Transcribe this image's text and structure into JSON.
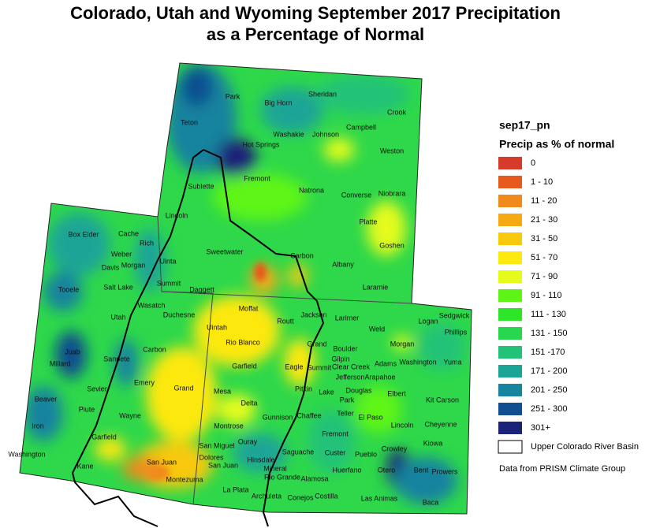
{
  "title": [
    "Colorado, Utah and Wyoming September 2017 Precipitation",
    "as a Percentage of Normal"
  ],
  "legend": {
    "name": "sep17_pn",
    "subtitle": "Precip as % of normal",
    "items": [
      {
        "label": "0",
        "color": "#d63a2a"
      },
      {
        "label": "1 - 10",
        "color": "#e65a1e"
      },
      {
        "label": "11 - 20",
        "color": "#f08a1a"
      },
      {
        "label": "21 - 30",
        "color": "#f5aa14"
      },
      {
        "label": "31 - 50",
        "color": "#f8c90c"
      },
      {
        "label": "51 - 70",
        "color": "#fde810"
      },
      {
        "label": "71 - 90",
        "color": "#e4fb1c"
      },
      {
        "label": "91 - 110",
        "color": "#5ef516"
      },
      {
        "label": "111 - 130",
        "color": "#2ee529"
      },
      {
        "label": "131 - 150",
        "color": "#28d650"
      },
      {
        "label": "151 -170",
        "color": "#22c278"
      },
      {
        "label": "171 - 200",
        "color": "#1aa596"
      },
      {
        "label": "201 - 250",
        "color": "#16839f"
      },
      {
        "label": "251 - 300",
        "color": "#104e8f"
      },
      {
        "label": "301+",
        "color": "#1b2378"
      }
    ],
    "basin_label": "Upper Colorado River Basin"
  },
  "source": "Data from PRISM Climate Group",
  "counties": [
    "Park",
    "Big Horn",
    "Sheridan",
    "Crook",
    "Teton",
    "Campbell",
    "Washakie",
    "Johnson",
    "Hot Springs",
    "Weston",
    "Fremont",
    "Sublette",
    "Natrona",
    "Converse",
    "Niobrara",
    "Lincoln",
    "Platte",
    "Goshen",
    "Carbon",
    "Sweetwater",
    "Albany",
    "Laramie",
    "Uinta",
    "Box Elder",
    "Cache",
    "Rich",
    "Weber",
    "Davis",
    "Morgan",
    "Summit",
    "Daggett",
    "Salt Lake",
    "Tooele",
    "Wasatch",
    "Duchesne",
    "Utah",
    "Uintah",
    "Moffat",
    "Routt",
    "Jackson",
    "Larimer",
    "Logan",
    "Sedgwick",
    "Weld",
    "Phillips",
    "Juab",
    "Carbon",
    "Rio Blanco",
    "Grand",
    "Boulder",
    "Morgan",
    "Millard",
    "Sanpete",
    "Garfield",
    "Gilpin",
    "Eagle",
    "Summit",
    "Clear Creek",
    "Adams",
    "Washington",
    "Yuma",
    "Jefferson",
    "Arapahoe",
    "Sevier",
    "Emery",
    "Grand",
    "Mesa",
    "Pitkin",
    "Lake",
    "Douglas",
    "Elbert",
    "Kit Carson",
    "Delta",
    "Beaver",
    "Piute",
    "Wayne",
    "Park",
    "Teller",
    "El Paso",
    "Gunnison",
    "Chaffee",
    "Iron",
    "Montrose",
    "Lincoln",
    "Cheyenne",
    "Fremont",
    "Garfield",
    "Ouray",
    "San Miguel",
    "Hinsdale",
    "Saguache",
    "Custer",
    "Pueblo",
    "Kiowa",
    "Crowley",
    "Washington",
    "San Juan",
    "Dolores",
    "San Juan",
    "Mineral",
    "Kane",
    "Bent",
    "Prowers",
    "Otero",
    "Huerfano",
    "Alamosa",
    "Rio Grande",
    "Montezuma",
    "La Plata",
    "Archuleta",
    "Conejos",
    "Costilla",
    "Las Animas",
    "Baca"
  ]
}
